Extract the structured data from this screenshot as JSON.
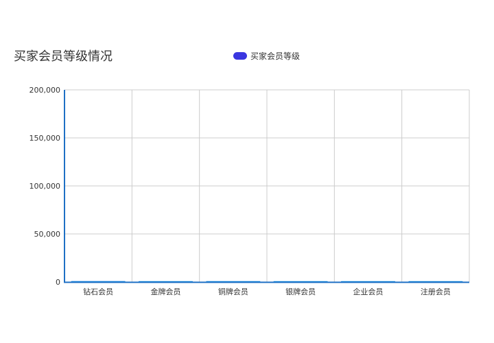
{
  "chart_data": {
    "type": "bar",
    "title": "买家会员等级情况",
    "categories": [
      "钻石会员",
      "金牌会员",
      "铜牌会员",
      "银牌会员",
      "企业会员",
      "注册会员"
    ],
    "series": [
      {
        "name": "买家会员等级",
        "values": [
          820,
          260,
          760,
          240,
          300,
          280
        ],
        "color": "#3a36e0"
      }
    ],
    "y_ticks": [
      "0",
      "50,000",
      "100,000",
      "150,000",
      "200,000"
    ],
    "ylim": [
      0,
      200000
    ],
    "grid": true,
    "legend_position": "top-center",
    "colors": {
      "axis": "#1e6fc4",
      "grid": "#cccccc",
      "bar_bottom": "#1e9be8"
    }
  }
}
